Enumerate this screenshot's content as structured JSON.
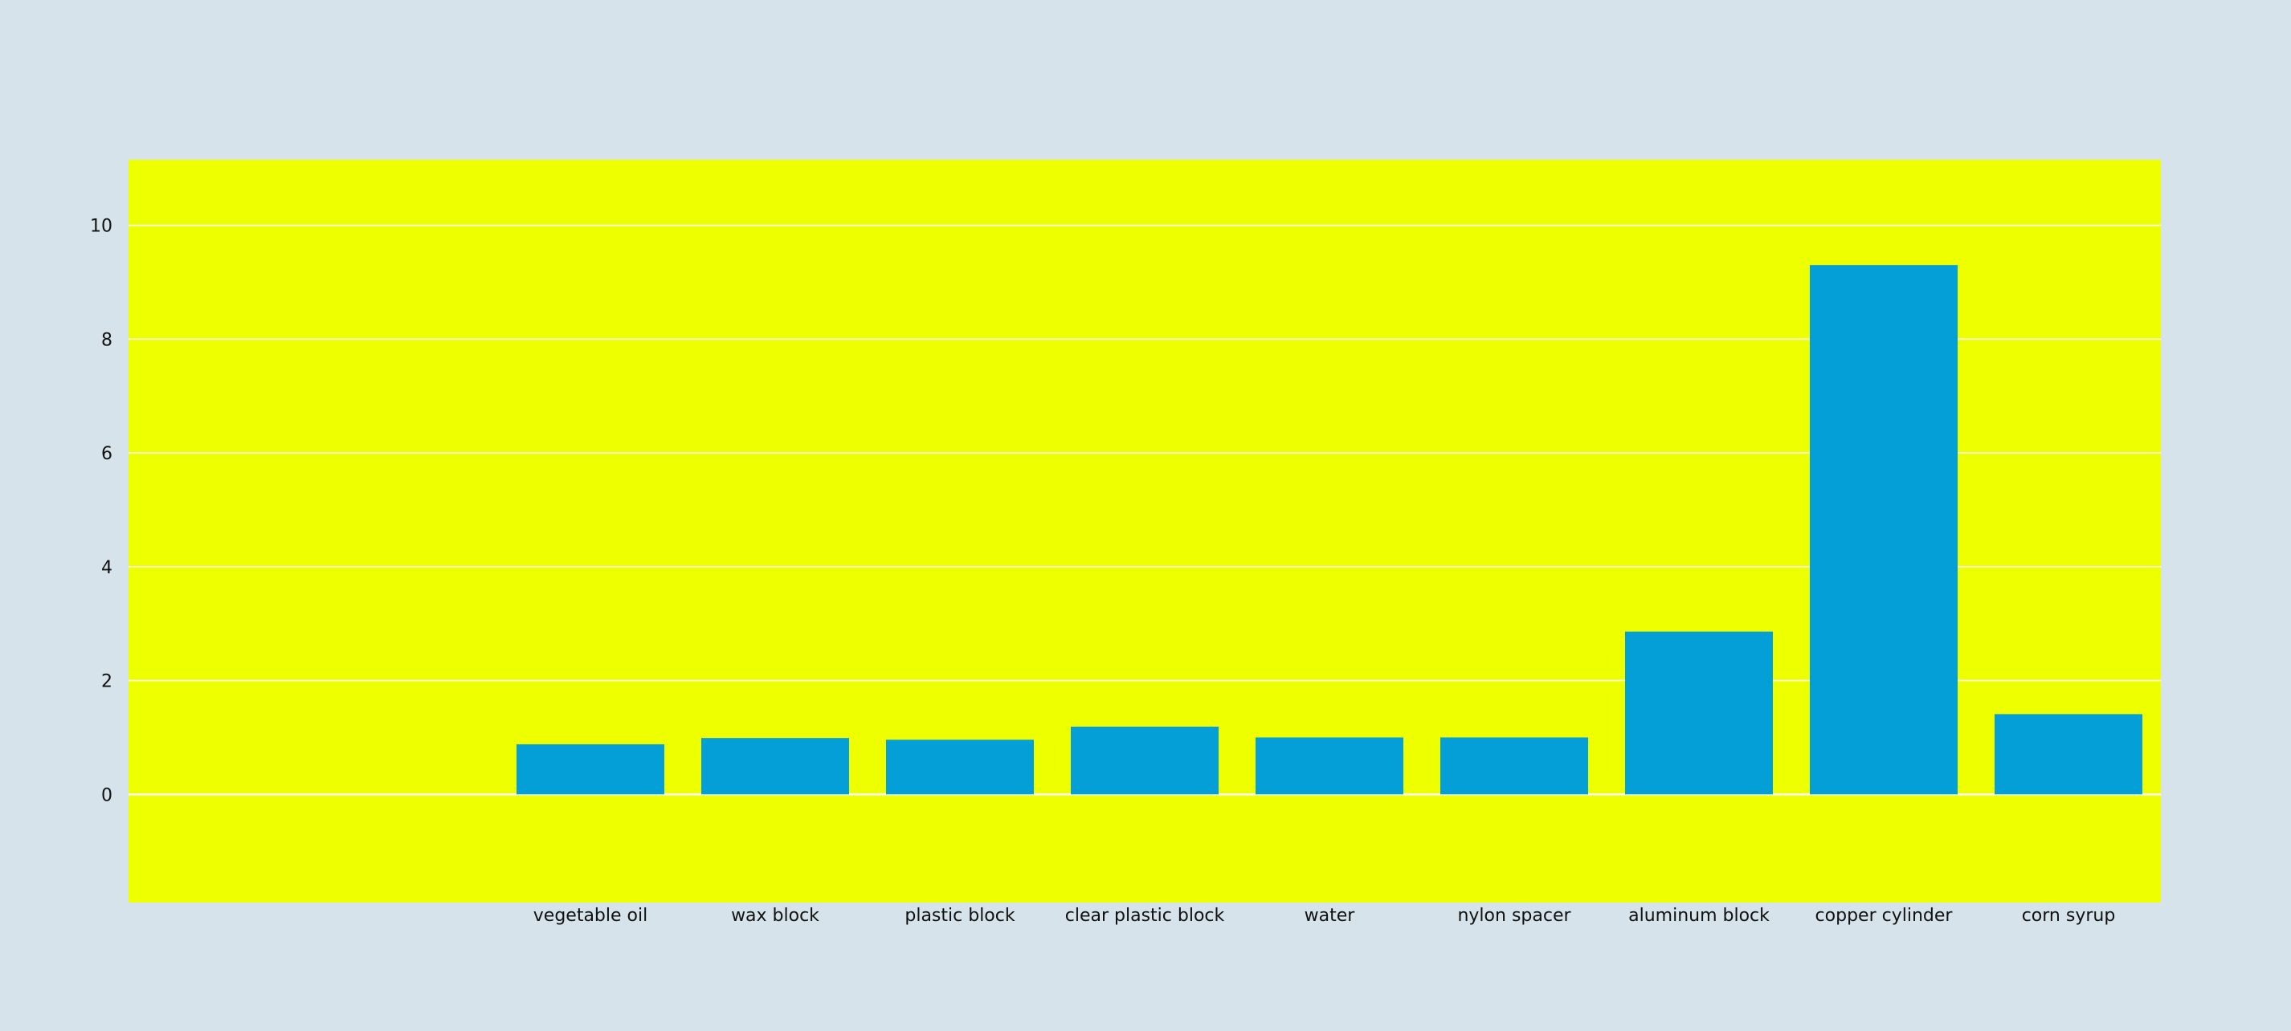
{
  "colors": {
    "page_background": "#d6e3eb",
    "plot_background": "#eeff00",
    "bar": "#039fd6",
    "gridline": "#ffffff",
    "text": "#111111"
  },
  "chart_data": {
    "type": "bar",
    "title": "",
    "xlabel": "",
    "ylabel": "",
    "categories": [
      "",
      "",
      "vegetable oil",
      "wax block",
      "plastic block",
      "clear plastic block",
      "water",
      "nylon spacer",
      "aluminum block",
      "copper cylinder",
      "corn syrup"
    ],
    "values": [
      null,
      null,
      0.88,
      0.99,
      0.96,
      1.19,
      1.0,
      1.0,
      2.86,
      9.3,
      1.41
    ],
    "ylim": [
      -1.9,
      11.15
    ],
    "yticks": [
      0,
      2,
      4,
      6,
      8,
      10
    ],
    "grid": true,
    "legend": "none"
  }
}
